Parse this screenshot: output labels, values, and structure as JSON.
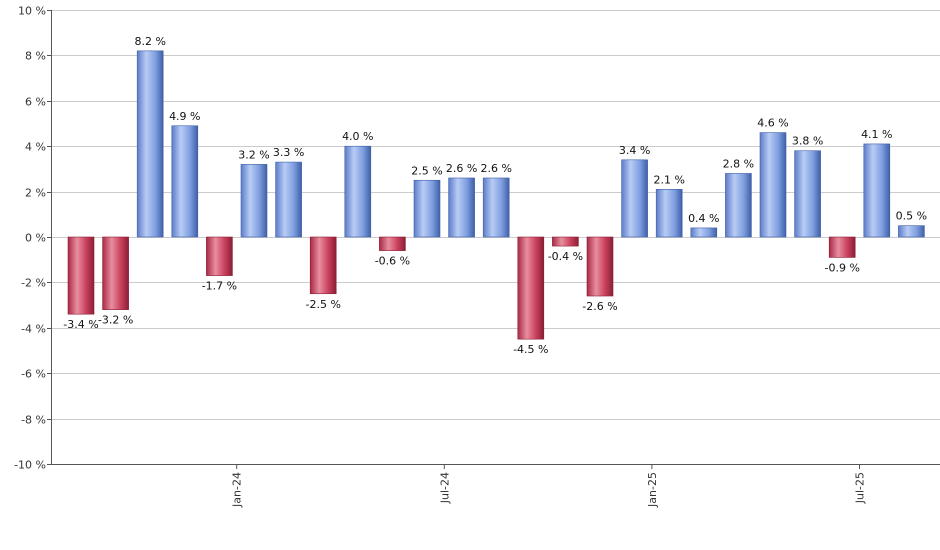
{
  "chart_data": {
    "type": "bar",
    "title": "",
    "xlabel": "",
    "ylabel": "",
    "ylim": [
      -10,
      10
    ],
    "yticks": [
      10,
      8,
      6,
      4,
      2,
      0,
      -2,
      -4,
      -6,
      -8,
      -10
    ],
    "ytick_labels": [
      "10 %",
      "8 %",
      "6 %",
      "4 %",
      "2 %",
      "0 %",
      "-2 %",
      "-4 %",
      "-6 %",
      "-8 %",
      "-10 %"
    ],
    "grid": true,
    "x_tick_labels": [
      {
        "label": "Jan-24",
        "index": 4.5
      },
      {
        "label": "Jul-24",
        "index": 10.5
      },
      {
        "label": "Jan-25",
        "index": 16.5
      },
      {
        "label": "Jul-25",
        "index": 22.5
      }
    ],
    "values": [
      -3.4,
      -3.2,
      8.2,
      4.9,
      -1.7,
      3.2,
      3.3,
      -2.5,
      4.0,
      -0.6,
      2.5,
      2.6,
      2.6,
      -4.5,
      -0.4,
      -2.6,
      3.4,
      2.1,
      0.4,
      2.8,
      4.6,
      3.8,
      -0.9,
      4.1,
      0.5
    ],
    "data_labels": [
      "-3.4 %",
      "-3.2 %",
      "8.2 %",
      "4.9 %",
      "-1.7 %",
      "3.2 %",
      "3.3 %",
      "-2.5 %",
      "4.0 %",
      "-0.6 %",
      "2.5 %",
      "2.6 %",
      "2.6 %",
      "-4.5 %",
      "-0.4 %",
      "-2.6 %",
      "3.4 %",
      "2.1 %",
      "0.4 %",
      "2.8 %",
      "4.6 %",
      "3.8 %",
      "-0.9 %",
      "4.1 %",
      "0.5 %"
    ],
    "colors": {
      "positive": "#7f9fe0",
      "positive_dark": "#3f5fa8",
      "positive_light": "#b8ccf5",
      "negative": "#c9405c",
      "negative_dark": "#8a1f36",
      "negative_light": "#e88ea0"
    }
  }
}
